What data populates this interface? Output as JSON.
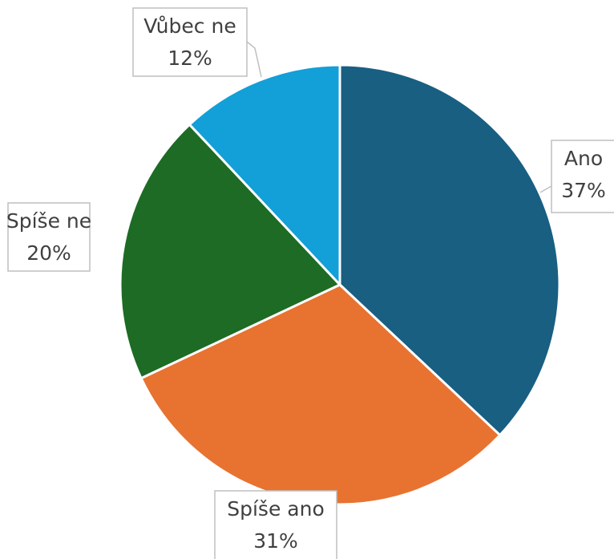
{
  "chart_data": {
    "type": "pie",
    "categories": [
      "Ano",
      "Spíše ano",
      "Spíše ne",
      "Vůbec ne"
    ],
    "values": [
      37,
      31,
      20,
      12
    ],
    "value_labels": [
      "37%",
      "31%",
      "20%",
      "12%"
    ],
    "colors": [
      "#185f82",
      "#e87230",
      "#1d6b24",
      "#139fd7"
    ]
  }
}
